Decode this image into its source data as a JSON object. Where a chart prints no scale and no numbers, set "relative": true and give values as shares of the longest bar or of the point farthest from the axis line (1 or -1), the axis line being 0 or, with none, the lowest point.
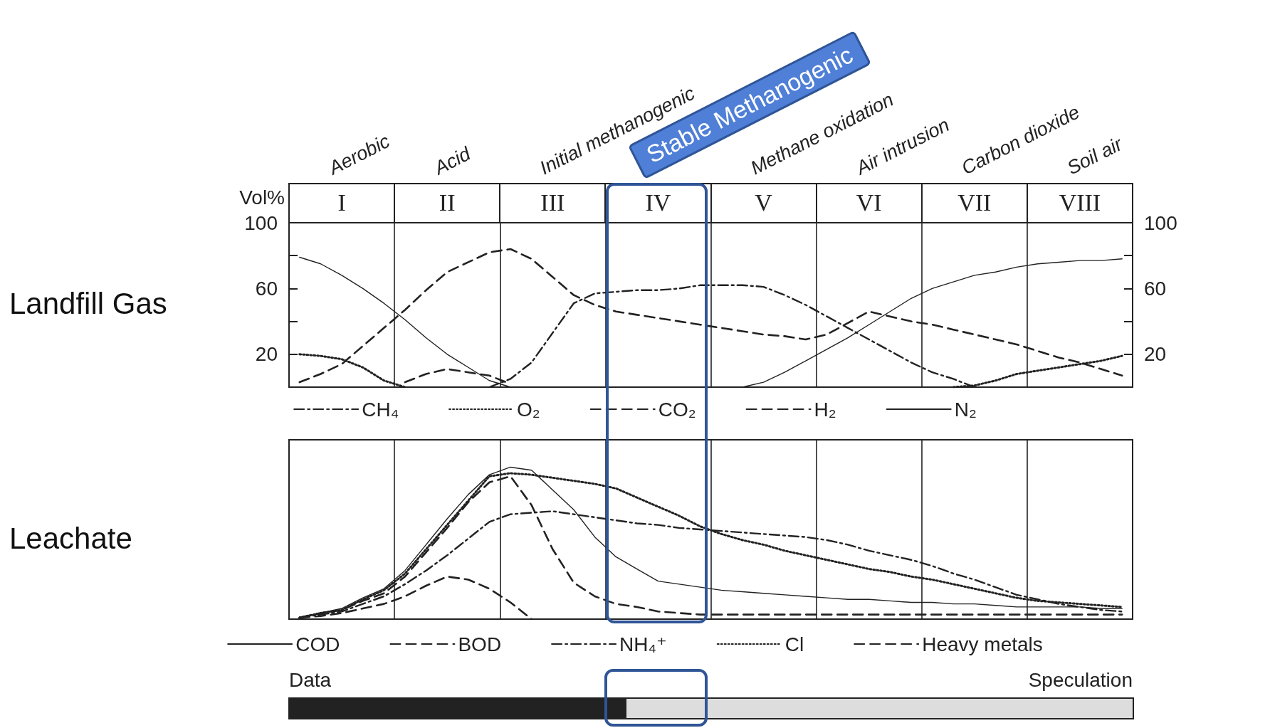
{
  "chart_data": [
    {
      "type": "line",
      "title": "Landfill Gas",
      "ylabel": "Vol%",
      "categories": [
        null,
        null,
        "I",
        null,
        null,
        null,
        null,
        "II",
        null,
        null,
        null,
        null,
        "III",
        null,
        null,
        null,
        null,
        "IV",
        null,
        null,
        null,
        null,
        "V",
        null,
        null,
        null,
        null,
        "VI",
        null,
        null,
        null,
        null,
        "VII",
        null,
        null,
        null,
        null,
        "VIII",
        null,
        null
      ],
      "annotations": [
        "Aerobic",
        "Acid",
        "Initial methanogenic",
        "Stable Methanogenic",
        "Methane oxidation",
        "Air intrusion",
        "Carbon dioxide",
        "Soil air"
      ],
      "ylim": [
        0,
        100
      ],
      "yticks": [
        {
          "value": 0,
          "label": null
        },
        20,
        {
          "value": 40,
          "label": null
        },
        60,
        {
          "value": 80,
          "label": null
        },
        100
      ],
      "y2lim": [
        0,
        100
      ],
      "y2ticks": [
        {
          "value": 0,
          "label": null
        },
        20,
        {
          "value": 40,
          "label": null
        },
        60,
        {
          "value": 80,
          "label": null
        },
        100
      ],
      "grid": "x",
      "legend": "bottom",
      "marker": "none",
      "series": [
        {
          "name": "CH₄",
          "color": "#222222",
          "line_style": "dashdot",
          "values": [
            null,
            null,
            null,
            null,
            null,
            null,
            null,
            null,
            null,
            0,
            5,
            15,
            33,
            51,
            57,
            58,
            59,
            59,
            60,
            62,
            62,
            62,
            61,
            56,
            50,
            43,
            36,
            29,
            22,
            15,
            9,
            5,
            0,
            null,
            null,
            null,
            null,
            null,
            null,
            null
          ]
        },
        {
          "name": "O₂",
          "color": "#222222",
          "line_style": "dotted",
          "values": [
            20,
            19,
            17,
            12,
            4,
            0,
            null,
            null,
            null,
            null,
            null,
            null,
            null,
            null,
            null,
            null,
            null,
            null,
            null,
            null,
            null,
            null,
            null,
            null,
            null,
            null,
            null,
            null,
            null,
            null,
            null,
            0,
            1,
            4,
            8,
            10,
            12,
            14,
            16,
            19
          ]
        },
        {
          "name": "CO₂",
          "color": "#222222",
          "line_style": "dashed",
          "values": [
            3,
            8,
            14,
            25,
            36,
            47,
            59,
            70,
            76,
            82,
            84,
            78,
            67,
            56,
            50,
            46,
            44,
            42,
            40,
            38,
            36,
            34,
            32,
            31,
            29,
            32,
            39,
            46,
            43,
            40,
            38,
            35,
            32,
            29,
            26,
            22,
            18,
            15,
            11,
            7
          ]
        },
        {
          "name": "H₂",
          "color": "#222222",
          "line_style": "dashed",
          "values": [
            null,
            null,
            null,
            null,
            null,
            3,
            8,
            11,
            9,
            7,
            2,
            null,
            null,
            null,
            null,
            null,
            null,
            null,
            null,
            null,
            null,
            null,
            null,
            null,
            null,
            null,
            null,
            null,
            null,
            null,
            null,
            null,
            null,
            null,
            null,
            null,
            null,
            null,
            null,
            null
          ]
        },
        {
          "name": "N₂",
          "color": "#222222",
          "line_style": "solid",
          "values": [
            79,
            75,
            68,
            60,
            51,
            41,
            30,
            20,
            12,
            4,
            0,
            null,
            null,
            null,
            null,
            null,
            null,
            null,
            null,
            null,
            null,
            0,
            3,
            9,
            16,
            23,
            30,
            38,
            46,
            54,
            60,
            64,
            68,
            70,
            73,
            75,
            76,
            77,
            77,
            78
          ]
        }
      ]
    },
    {
      "type": "line",
      "title": "Leachate",
      "relative": true,
      "categories": [
        null,
        null,
        null,
        null,
        null,
        null,
        null,
        null,
        null,
        null,
        null,
        null,
        null,
        null,
        null,
        null,
        null,
        null,
        null,
        null,
        null,
        null,
        null,
        null,
        null,
        null,
        null,
        null,
        null,
        null,
        null,
        null,
        null,
        null,
        null,
        null,
        null,
        null,
        null,
        null
      ],
      "grid": "x",
      "legend": "bottom",
      "marker": "none",
      "series": [
        {
          "name": "COD",
          "color": "#222222",
          "line_style": "solid",
          "values": [
            0.01,
            0.04,
            0.07,
            0.14,
            0.2,
            0.32,
            0.49,
            0.66,
            0.82,
            0.95,
            1,
            0.98,
            0.85,
            0.72,
            0.54,
            0.41,
            0.33,
            0.25,
            0.23,
            0.21,
            0.19,
            0.18,
            0.17,
            0.16,
            0.15,
            0.14,
            0.13,
            0.13,
            0.12,
            0.11,
            0.11,
            0.1,
            0.1,
            0.09,
            0.08,
            0.08,
            0.08,
            0.08,
            0.07,
            0.07
          ]
        },
        {
          "name": "BOD",
          "color": "#222222",
          "line_style": "dashed",
          "values": [
            0.01,
            0.04,
            0.06,
            0.12,
            0.17,
            0.28,
            0.44,
            0.6,
            0.77,
            0.9,
            0.94,
            0.75,
            0.46,
            0.24,
            0.15,
            0.1,
            0.08,
            0.05,
            0.04,
            0.03,
            0.03,
            0.03,
            0.03,
            0.03,
            0.03,
            0.03,
            0.03,
            0.03,
            0.03,
            0.03,
            0.03,
            0.03,
            0.03,
            0.03,
            0.03,
            0.03,
            0.03,
            0.03,
            0.03,
            0.03
          ]
        },
        {
          "name": "NH₄⁺",
          "color": "#222222",
          "line_style": "dashdot",
          "values": [
            0.01,
            0.03,
            0.05,
            0.1,
            0.15,
            0.23,
            0.32,
            0.42,
            0.53,
            0.64,
            0.69,
            0.7,
            0.71,
            0.69,
            0.67,
            0.65,
            0.63,
            0.62,
            0.6,
            0.59,
            0.58,
            0.57,
            0.56,
            0.55,
            0.54,
            0.52,
            0.49,
            0.45,
            0.42,
            0.39,
            0.35,
            0.3,
            0.26,
            0.21,
            0.16,
            0.13,
            0.1,
            0.08,
            0.06,
            0.05
          ]
        },
        {
          "name": "Cl",
          "color": "#222222",
          "line_style": "dotted",
          "values": [
            0.01,
            0.04,
            0.06,
            0.13,
            0.19,
            0.3,
            0.46,
            0.62,
            0.78,
            0.94,
            0.96,
            0.95,
            0.93,
            0.91,
            0.89,
            0.86,
            0.8,
            0.74,
            0.68,
            0.61,
            0.56,
            0.52,
            0.49,
            0.45,
            0.42,
            0.39,
            0.36,
            0.33,
            0.31,
            0.28,
            0.26,
            0.23,
            0.2,
            0.17,
            0.14,
            0.12,
            0.11,
            0.1,
            0.09,
            0.08
          ]
        },
        {
          "name": "Heavy metals",
          "color": "#222222",
          "line_style": "dashed",
          "values": [
            0.01,
            0.02,
            0.04,
            0.07,
            0.1,
            0.15,
            0.22,
            0.28,
            0.26,
            0.2,
            0.11,
            0,
            null,
            null,
            null,
            null,
            null,
            null,
            null,
            null,
            null,
            null,
            null,
            null,
            null,
            null,
            null,
            null,
            null,
            null,
            null,
            null,
            null,
            null,
            null,
            null,
            null,
            null,
            null,
            null
          ]
        }
      ]
    },
    {
      "type": "bar",
      "orientation": "horizontal",
      "stacked": true,
      "relative": true,
      "categories": [
        null
      ],
      "series": [
        {
          "name": "Data",
          "color": "#222222",
          "values": [
            0.4
          ]
        },
        {
          "name": "Speculation",
          "color": "#dddddd",
          "values": [
            0.6
          ]
        }
      ]
    }
  ]
}
